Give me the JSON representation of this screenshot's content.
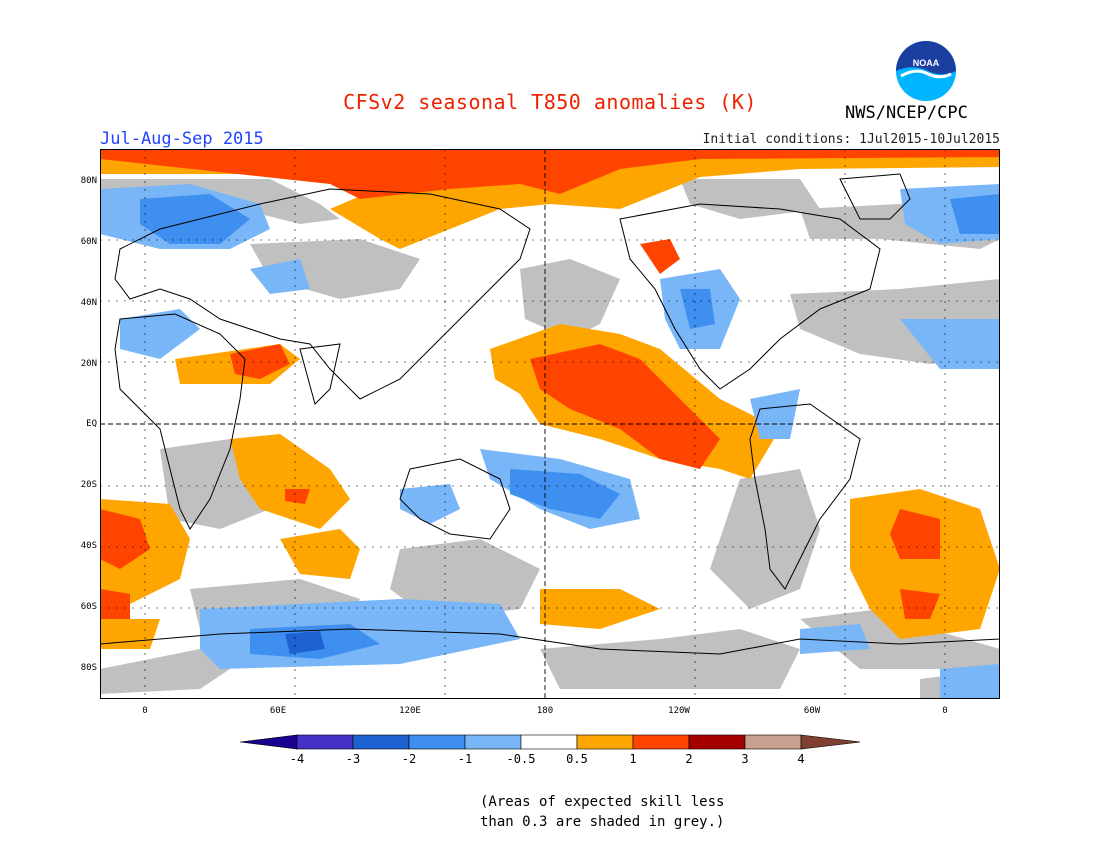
{
  "title": "CFSv2 seasonal T850 anomalies (K)",
  "season": "Jul-Aug-Sep 2015",
  "initial_conditions": "Initial conditions: 1Jul2015-10Jul2015",
  "organization": "NWS/NCEP/CPC",
  "logo_text": "NOAA",
  "lat_labels": [
    "80N",
    "60N",
    "40N",
    "20N",
    "EQ",
    "20S",
    "40S",
    "60S",
    "80S"
  ],
  "lon_labels": [
    "0",
    "60E",
    "120E",
    "180",
    "120W",
    "60W",
    "0"
  ],
  "legend": {
    "bins": [
      "-4",
      "-3",
      "-2",
      "-1",
      "-0.5",
      "0.5",
      "1",
      "2",
      "3",
      "4"
    ],
    "colors": [
      "#1a0090",
      "#4530c8",
      "#1e62d2",
      "#3e8ff0",
      "#78b6f8",
      "#ffffff",
      "#ffa500",
      "#ff4400",
      "#a50000",
      "#c8a090",
      "#804030"
    ]
  },
  "skill_color": "#c0c0c0",
  "note": [
    "(Areas of expected skill less",
    "than 0.3 are shaded in grey.)"
  ]
}
